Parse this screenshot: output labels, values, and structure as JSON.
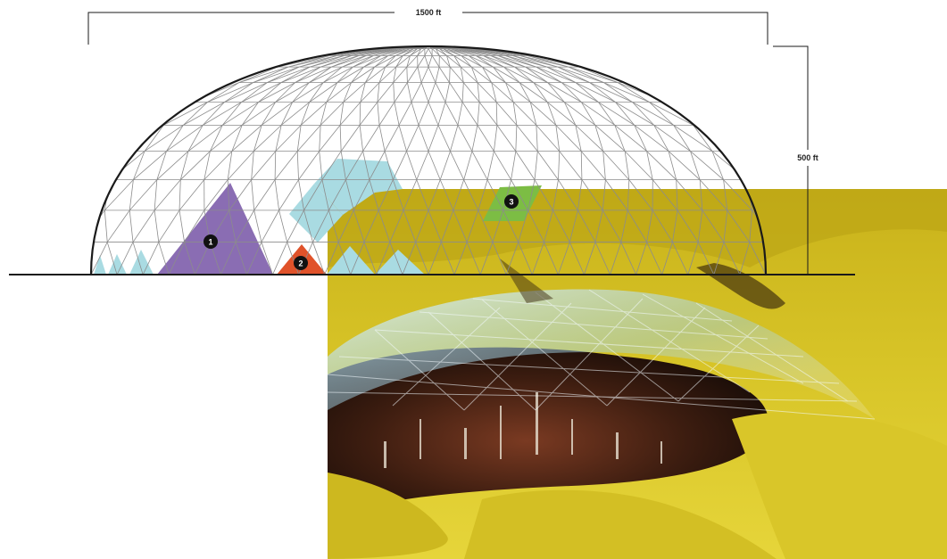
{
  "dimensions": {
    "width_label": "1500 ft",
    "height_label": "500 ft"
  },
  "markers": [
    {
      "id": "1",
      "color": "#8a6db3"
    },
    {
      "id": "2",
      "color": "#e0522a"
    },
    {
      "id": "3",
      "color": "#7cbd44"
    }
  ],
  "colors": {
    "grid_line": "#8c8c8c",
    "outline": "#1a1a1a",
    "panel_blue": "#a9dbe2",
    "panel_purple": "#8a6db3",
    "panel_orange": "#e0522a",
    "panel_green": "#7cbd44",
    "terrain_yellow": "#d9c21f",
    "terrain_dark": "#4a2a18"
  }
}
